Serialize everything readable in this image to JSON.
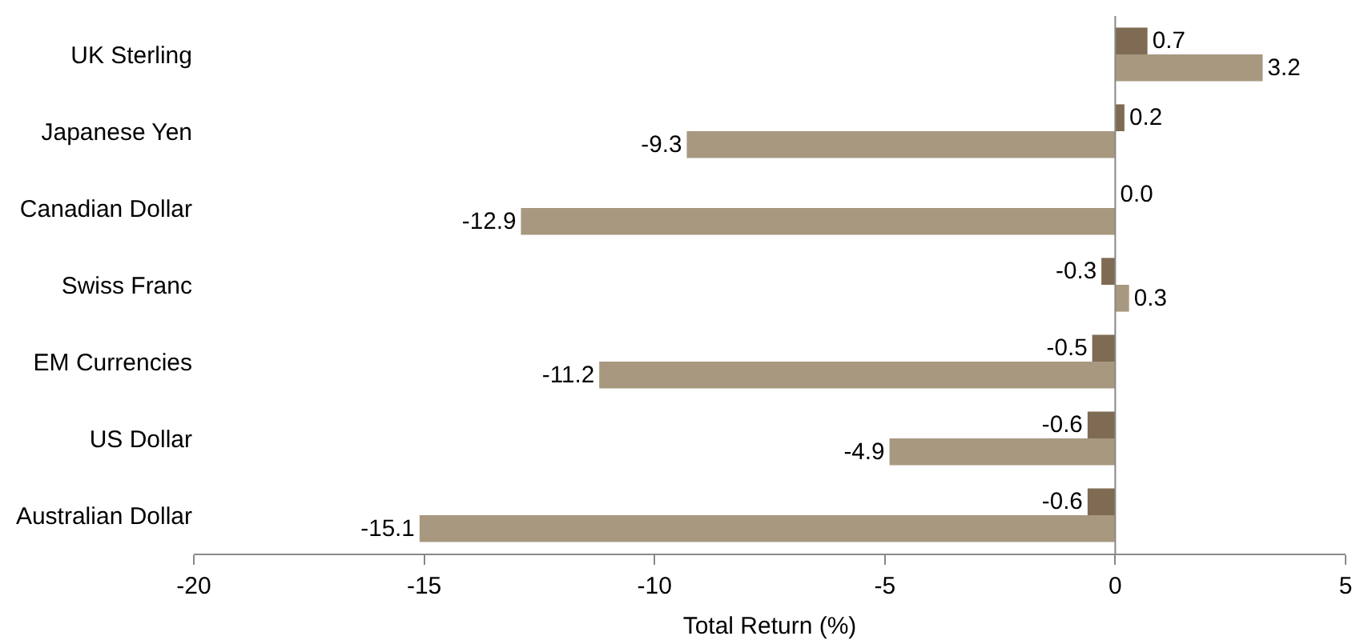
{
  "chart_data": {
    "type": "bar",
    "orientation": "horizontal",
    "xlabel": "Total Return (%)",
    "categories": [
      "UK Sterling",
      "Japanese Yen",
      "Canadian Dollar",
      "Swiss Franc",
      "EM Currencies",
      "US Dollar",
      "Australian Dollar"
    ],
    "series": [
      {
        "color": "#7f6b53",
        "values": [
          0.7,
          0.2,
          0.0,
          -0.3,
          -0.5,
          -0.6,
          -0.6
        ],
        "value_labels": [
          "0.7",
          "0.2",
          "0.0",
          "-0.3",
          "-0.5",
          "-0.6",
          "-0.6"
        ]
      },
      {
        "color": "#a89880",
        "values": [
          3.2,
          -9.3,
          -12.9,
          0.3,
          -11.2,
          -4.9,
          -15.1
        ],
        "value_labels": [
          "3.2",
          "-9.3",
          "-12.9",
          "0.3",
          "-11.2",
          "-4.9",
          "-15.1"
        ]
      }
    ],
    "xlim": [
      -20,
      5
    ],
    "xticks": [
      -20,
      -15,
      -10,
      -5,
      0,
      5
    ],
    "grid": false,
    "ref_lines": [
      {
        "axis": "x",
        "value": 0,
        "color": "#888888"
      }
    ]
  }
}
